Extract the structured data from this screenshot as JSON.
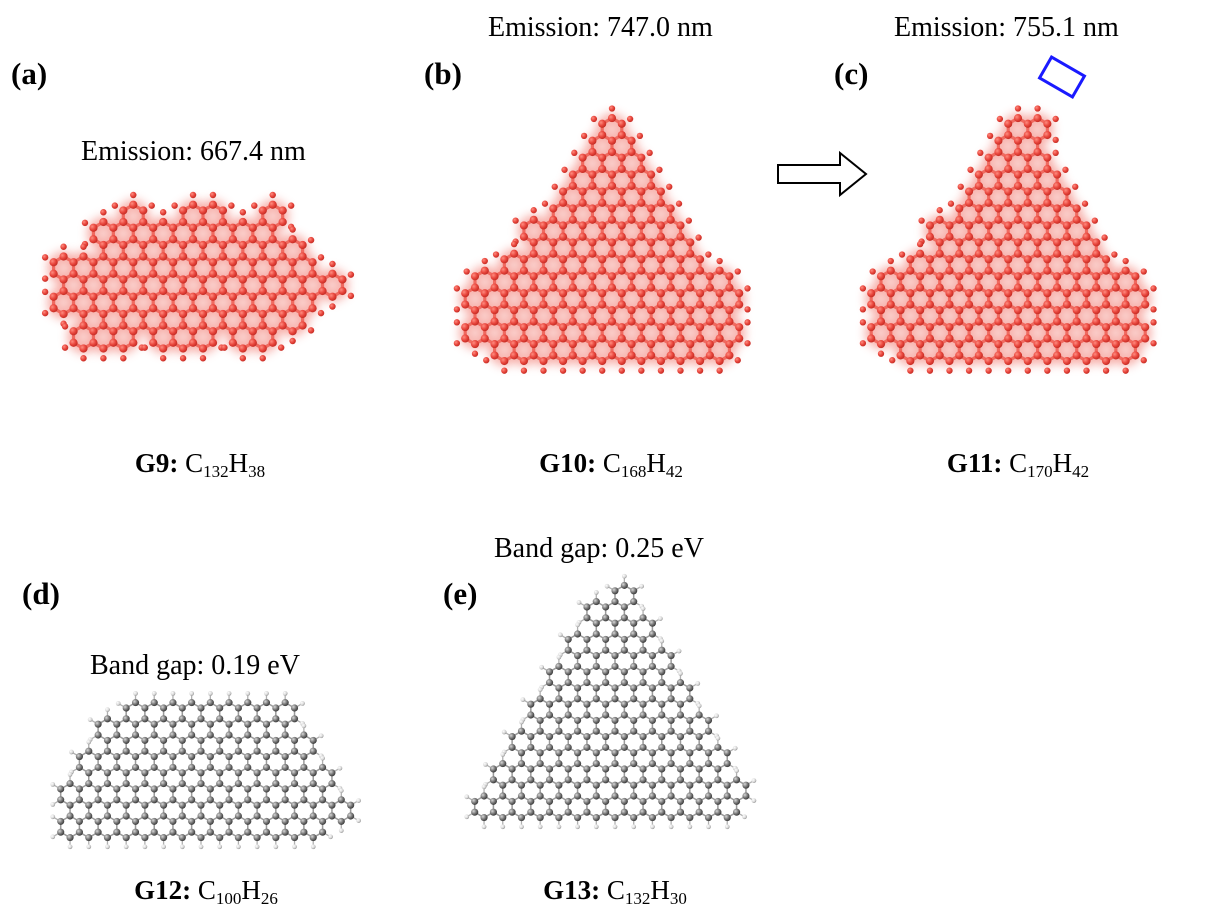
{
  "panels": [
    {
      "label": "(a)",
      "annotation": "Emission: 667.4 nm",
      "name": "G9:",
      "formula": {
        "c": "C",
        "c_sub": "132",
        "h": "H",
        "h_sub": "38"
      }
    },
    {
      "label": "(b)",
      "annotation": "Emission: 747.0 nm",
      "name": "G10:",
      "formula": {
        "c": "C",
        "c_sub": "168",
        "h": "H",
        "h_sub": "42"
      }
    },
    {
      "label": "(c)",
      "annotation": "Emission: 755.1 nm",
      "name": "G11:",
      "formula": {
        "c": "C",
        "c_sub": "170",
        "h": "H",
        "h_sub": "42"
      }
    },
    {
      "label": "(d)",
      "annotation": "Band gap: 0.19 eV",
      "name": "G12:",
      "formula": {
        "c": "C",
        "c_sub": "100",
        "h": "H",
        "h_sub": "26"
      }
    },
    {
      "label": "(e)",
      "annotation": "Band gap: 0.25 eV",
      "name": "G13:",
      "formula": {
        "c": "C",
        "c_sub": "132",
        "h": "H",
        "h_sub": "30"
      }
    }
  ],
  "colors": {
    "emissive_atom": "#e8453c",
    "emissive_glow": "#f3877f",
    "carbon_atom": "#7c7c7c",
    "hydrogen_atom": "#dcdcdc",
    "highlight_box": "#1a1aff",
    "arrow_outline": "#000000"
  },
  "icons": {
    "transition_arrow": "arrow-right-outline-icon",
    "highlight_box": "rectangle-outline-icon"
  }
}
